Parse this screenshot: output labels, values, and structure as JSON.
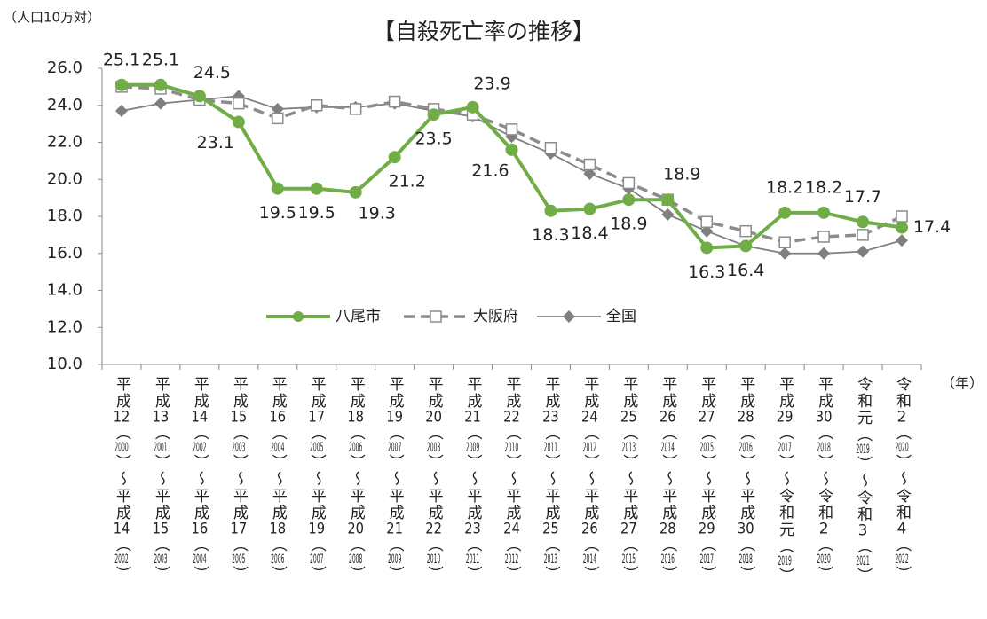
{
  "chart_data": {
    "type": "line",
    "title": "【自殺死亡率の推移】",
    "y_unit": "（人口10万対）",
    "x_unit": "（年）",
    "categories": [
      "平成12（2000）～平成14（2002）",
      "平成13（2001）～平成15（2003）",
      "平成14（2002）～平成16（2004）",
      "平成15（2003）～平成17（2005）",
      "平成16（2004）～平成18（2006）",
      "平成17（2005）～平成19（2007）",
      "平成18（2006）～平成20（2008）",
      "平成19（2007）～平成21（2009）",
      "平成20（2008）～平成22（2010）",
      "平成21（2009）～平成23（2011）",
      "平成22（2010）～平成24（2012）",
      "平成23（2011）～平成25（2013）",
      "平成24（2012）～平成26（2014）",
      "平成25（2013）～平成27（2015）",
      "平成26（2014）～平成28（2016）",
      "平成27（2015）～平成29（2017）",
      "平成28（2016）～平成30（2018）",
      "平成29（2017）～令和元（2019）",
      "平成30（2018）～令和2（2020）",
      "令和元（2019）～令和3（2021）",
      "令和2（2020）～令和4（2022）"
    ],
    "series": [
      {
        "name": "八尾市",
        "color": "#70ad47",
        "marker": "circle",
        "values": [
          25.1,
          25.1,
          24.5,
          23.1,
          19.5,
          19.5,
          19.3,
          21.2,
          23.5,
          23.9,
          21.6,
          18.3,
          18.4,
          18.9,
          18.9,
          16.3,
          16.4,
          18.2,
          18.2,
          17.7,
          17.4
        ]
      },
      {
        "name": "大阪府",
        "color": "#8c8c8c",
        "marker": "square",
        "dashed": true,
        "values": [
          25.0,
          24.9,
          24.3,
          24.1,
          23.3,
          24.0,
          23.8,
          24.2,
          23.8,
          23.5,
          22.7,
          21.7,
          20.8,
          19.8,
          18.9,
          17.7,
          17.2,
          16.6,
          16.9,
          17.0,
          18.0
        ]
      },
      {
        "name": "全国",
        "color": "#7f7f7f",
        "marker": "diamond",
        "values": [
          23.7,
          24.1,
          24.3,
          24.5,
          23.8,
          23.9,
          23.9,
          24.1,
          23.7,
          23.4,
          22.3,
          21.4,
          20.3,
          19.5,
          18.1,
          17.2,
          16.4,
          16.0,
          16.0,
          16.1,
          16.7
        ]
      }
    ],
    "ylim": [
      10,
      26
    ],
    "yticks": [
      {
        "value": 10,
        "label": "10.0"
      },
      {
        "value": 12,
        "label": "12.0"
      },
      {
        "value": 14,
        "label": "14.0"
      },
      {
        "value": 16,
        "label": "16.0"
      },
      {
        "value": 18,
        "label": "18.0"
      },
      {
        "value": 20,
        "label": "20.0"
      },
      {
        "value": 22,
        "label": "22.0"
      },
      {
        "value": 24,
        "label": "24.0"
      },
      {
        "value": 26,
        "label": "26.0"
      }
    ],
    "grid": false,
    "legend": "bottom-center",
    "data_labels_series": 0
  }
}
